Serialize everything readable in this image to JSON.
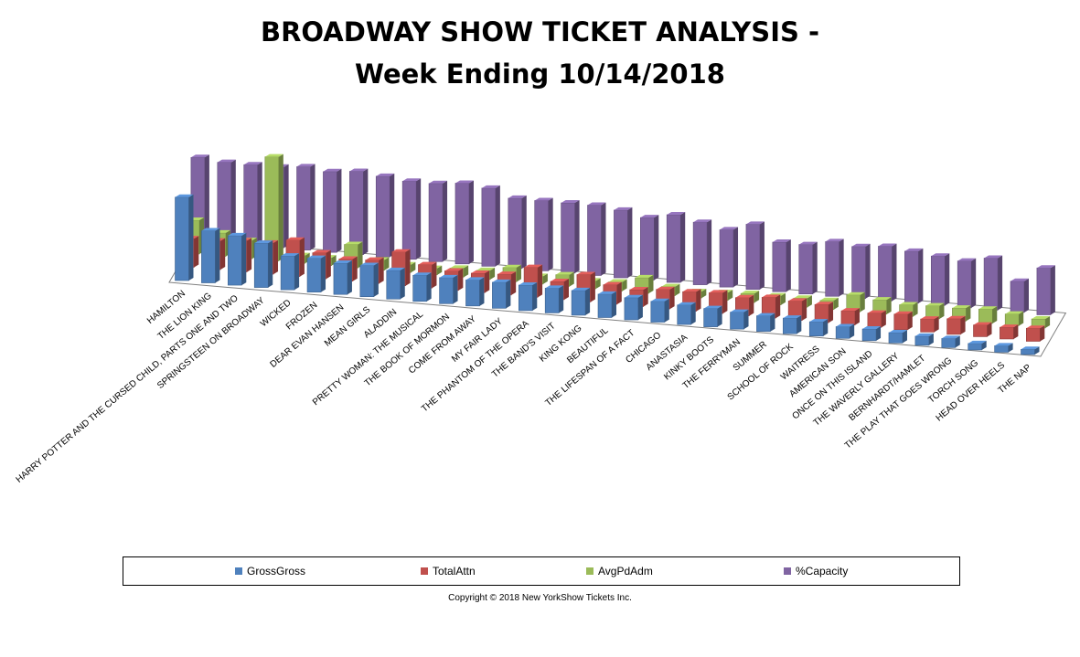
{
  "chart_data": {
    "type": "bar",
    "title_line1": "BROADWAY  SHOW TICKET ANALYSIS -",
    "title_line2": "Week Ending 10/14/2018",
    "categories": [
      "HAMILTON",
      "THE LION KING",
      "HARRY POTTER AND THE CURSED CHILD, PARTS ONE AND TWO",
      "SPRINGSTEEN ON BROADWAY",
      "WICKED",
      "FROZEN",
      "DEAR EVAN HANSEN",
      "MEAN GIRLS",
      "ALADDIN",
      "PRETTY WOMAN: THE MUSICAL",
      "THE BOOK OF MORMON",
      "COME FROM AWAY",
      "MY FAIR LADY",
      "THE PHANTOM OF THE OPERA",
      "THE BAND'S VISIT",
      "KING KONG",
      "BEAUTIFUL",
      "THE LIFESPAN OF A FACT",
      "CHICAGO",
      "ANASTASIA",
      "KINKY BOOTS",
      "THE FERRYMAN",
      "SUMMER",
      "SCHOOL OF ROCK",
      "WAITRESS",
      "AMERICAN SON",
      "ONCE ON THIS ISLAND",
      "THE WAVERLY GALLERY",
      "BERNHARDT/HAMLET",
      "THE PLAY THAT GOES WRONG",
      "TORCH SONG",
      "HEAD OVER HEELS",
      "THE NAP"
    ],
    "series": [
      {
        "name": "GrossGross",
        "color": "#4f81bd",
        "values": [
          3.2,
          2.0,
          1.9,
          1.7,
          1.3,
          1.3,
          1.2,
          1.2,
          1.1,
          1.0,
          1.0,
          1.0,
          1.0,
          0.98,
          0.95,
          0.95,
          0.9,
          0.85,
          0.8,
          0.75,
          0.7,
          0.65,
          0.6,
          0.6,
          0.55,
          0.45,
          0.45,
          0.4,
          0.35,
          0.35,
          0.25,
          0.25,
          0.2
        ]
      },
      {
        "name": "TotalAttn",
        "color": "#c0504d",
        "values": [
          1.1,
          1.1,
          1.2,
          1.2,
          1.4,
          1.0,
          0.85,
          0.9,
          1.3,
          0.9,
          0.75,
          0.75,
          0.8,
          1.15,
          0.7,
          1.05,
          0.75,
          0.65,
          0.75,
          0.75,
          0.8,
          0.7,
          0.8,
          0.75,
          0.7,
          0.55,
          0.55,
          0.6,
          0.5,
          0.6,
          0.45,
          0.45,
          0.5
        ]
      },
      {
        "name": "AvgPdAdm",
        "color": "#9bbb59",
        "values": [
          1.3,
          0.9,
          0.7,
          4.0,
          0.3,
          0.3,
          0.9,
          0.4,
          0.3,
          0.25,
          0.35,
          0.35,
          0.55,
          0.3,
          0.45,
          0.3,
          0.35,
          0.6,
          0.35,
          0.25,
          0.3,
          0.35,
          0.35,
          0.35,
          0.35,
          0.65,
          0.55,
          0.45,
          0.5,
          0.5,
          0.55,
          0.45,
          0.35
        ]
      },
      {
        "name": "%Capacity",
        "color": "#8064a2",
        "values": [
          3.2,
          3.1,
          3.1,
          3.1,
          3.2,
          3.1,
          3.2,
          3.1,
          3.0,
          3.0,
          3.1,
          3.0,
          2.7,
          2.7,
          2.7,
          2.7,
          2.6,
          2.4,
          2.6,
          2.4,
          2.2,
          2.5,
          1.9,
          1.9,
          2.1,
          2.0,
          2.1,
          2.0,
          1.9,
          1.8,
          2.0,
          1.2,
          1.8
        ]
      }
    ]
  },
  "copyright": "Copyright © 2018 New YorkShow Tickets Inc."
}
